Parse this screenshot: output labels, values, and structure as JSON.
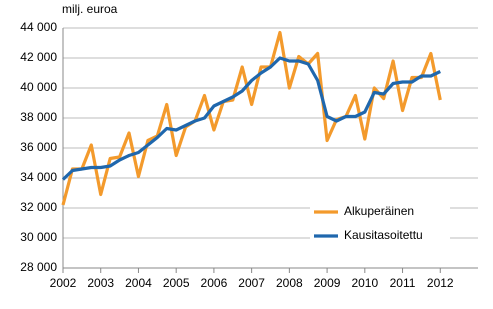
{
  "chart_data": {
    "type": "line",
    "y_label": "milj. euroa",
    "x": [
      2002,
      2002.25,
      2002.5,
      2002.75,
      2003,
      2003.25,
      2003.5,
      2003.75,
      2004,
      2004.25,
      2004.5,
      2004.75,
      2005,
      2005.25,
      2005.5,
      2005.75,
      2006,
      2006.25,
      2006.5,
      2006.75,
      2007,
      2007.25,
      2007.5,
      2007.75,
      2008,
      2008.25,
      2008.5,
      2008.75,
      2009,
      2009.25,
      2009.5,
      2009.75,
      2010,
      2010.25,
      2010.5,
      2010.75,
      2011,
      2011.25,
      2011.5,
      2011.75,
      2012
    ],
    "series": [
      {
        "name": "Alkuperäinen",
        "color": "#f39a2c",
        "values": [
          32200,
          34600,
          34600,
          36200,
          32900,
          35300,
          35400,
          37000,
          34100,
          36500,
          36800,
          38900,
          35500,
          37400,
          37800,
          39500,
          37200,
          39100,
          39200,
          41400,
          38900,
          41400,
          41400,
          43700,
          40000,
          42100,
          41600,
          42300,
          36500,
          37900,
          38100,
          39500,
          36600,
          40000,
          39300,
          41800,
          38500,
          40700,
          40700,
          42300,
          39200
        ]
      },
      {
        "name": "Kausitasoitettu",
        "color": "#1f67ad",
        "values": [
          33900,
          34500,
          34600,
          34700,
          34700,
          34800,
          35200,
          35500,
          35700,
          36200,
          36700,
          37300,
          37200,
          37500,
          37800,
          38000,
          38800,
          39100,
          39400,
          39800,
          40500,
          41000,
          41400,
          42000,
          41800,
          41800,
          41600,
          40500,
          38100,
          37800,
          38100,
          38100,
          38400,
          39700,
          39600,
          40300,
          40400,
          40400,
          40800,
          40800,
          41100
        ]
      }
    ],
    "xlim": [
      2002,
      2013
    ],
    "xticks": [
      2002,
      2003,
      2004,
      2005,
      2006,
      2007,
      2008,
      2009,
      2010,
      2011,
      2012
    ],
    "ylim": [
      28000,
      44000
    ],
    "yticks": [
      {
        "value": 28000,
        "label": "28 000"
      },
      {
        "value": 30000,
        "label": "30 000"
      },
      {
        "value": 32000,
        "label": "32 000"
      },
      {
        "value": 34000,
        "label": "34 000"
      },
      {
        "value": 36000,
        "label": "36 000"
      },
      {
        "value": 38000,
        "label": "38 000"
      },
      {
        "value": 40000,
        "label": "40 000"
      },
      {
        "value": 42000,
        "label": "42 000"
      },
      {
        "value": 44000,
        "label": "44 000"
      }
    ],
    "grid": true,
    "legend": "lower right"
  }
}
